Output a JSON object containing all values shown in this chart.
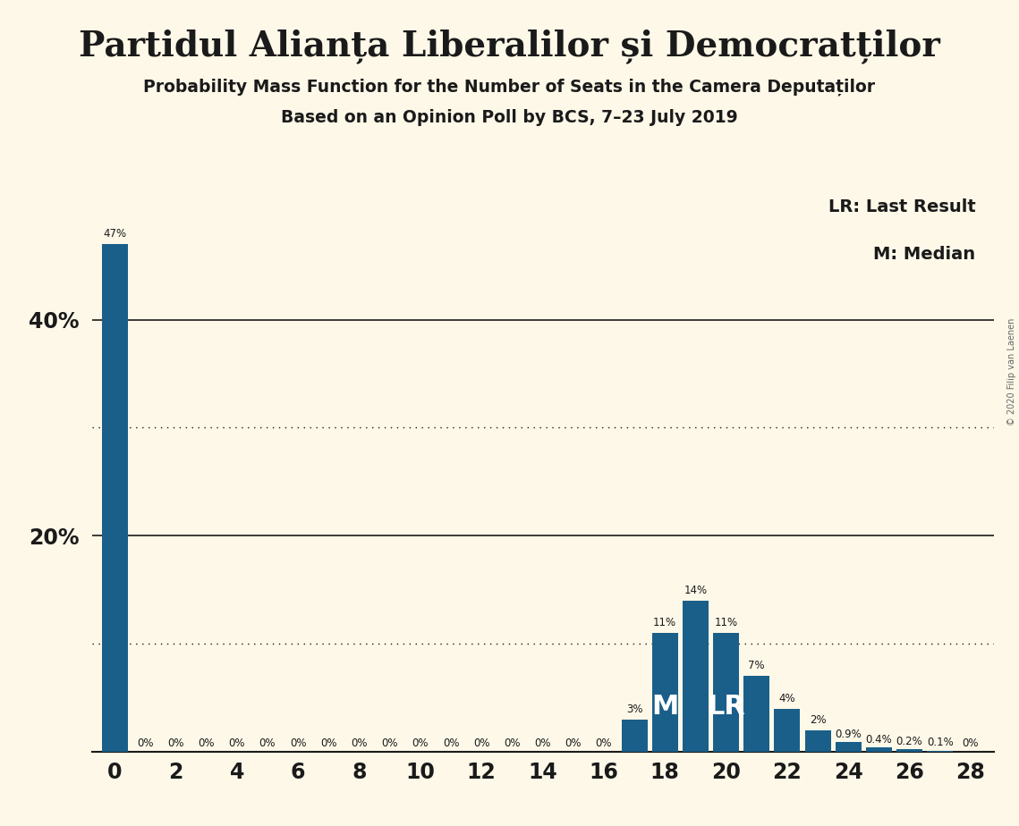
{
  "title_main": "Partidul Alianța Liberalilor și Democratților",
  "title_sub1": "Probability Mass Function for the Number of Seats in the Camera Deputaților",
  "title_sub2": "Based on an Opinion Poll by BCS, 7–23 July 2019",
  "copyright": "© 2020 Filip van Laenen",
  "legend_lr": "LR: Last Result",
  "legend_m": "M: Median",
  "bar_color": "#1a5f8a",
  "background_color": "#fdf8e8",
  "seats": [
    0,
    1,
    2,
    3,
    4,
    5,
    6,
    7,
    8,
    9,
    10,
    11,
    12,
    13,
    14,
    15,
    16,
    17,
    18,
    19,
    20,
    21,
    22,
    23,
    24,
    25,
    26,
    27,
    28
  ],
  "probs": [
    47,
    0,
    0,
    0,
    0,
    0,
    0,
    0,
    0,
    0,
    0,
    0,
    0,
    0,
    0,
    0,
    0,
    3,
    11,
    14,
    11,
    7,
    4,
    2,
    0.9,
    0.4,
    0.2,
    0.1,
    0
  ],
  "labels": [
    "47%",
    "0%",
    "0%",
    "0%",
    "0%",
    "0%",
    "0%",
    "0%",
    "0%",
    "0%",
    "0%",
    "0%",
    "0%",
    "0%",
    "0%",
    "0%",
    "0%",
    "3%",
    "11%",
    "14%",
    "11%",
    "7%",
    "4%",
    "2%",
    "0.9%",
    "0.4%",
    "0.2%",
    "0.1%",
    "0%"
  ],
  "median_seat": 18,
  "lr_seat": 20,
  "xtick_positions": [
    0,
    2,
    4,
    6,
    8,
    10,
    12,
    14,
    16,
    18,
    20,
    22,
    24,
    26,
    28
  ],
  "solid_yticks": [
    20,
    40
  ],
  "dotted_yticks": [
    10,
    30
  ],
  "ymax": 52
}
